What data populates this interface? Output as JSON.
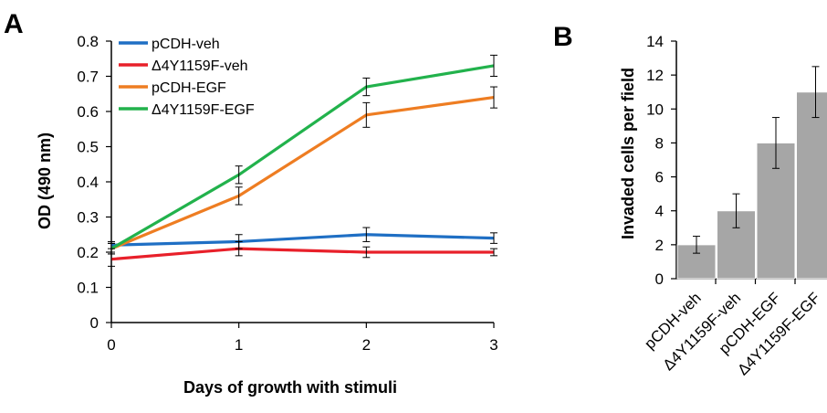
{
  "panels": {
    "a_letter": "A",
    "b_letter": "B"
  },
  "chart_data": [
    {
      "type": "line",
      "xlabel": "Days of growth with stimuli",
      "ylabel": "OD (490 nm)",
      "xlim": [
        0,
        3
      ],
      "ylim": [
        0,
        0.8
      ],
      "x_ticks": [
        "0",
        "1",
        "2",
        "3"
      ],
      "y_ticks": [
        "0",
        "0.1",
        "0.2",
        "0.3",
        "0.4",
        "0.5",
        "0.6",
        "0.7",
        "0.8"
      ],
      "x": [
        0,
        1,
        2,
        3
      ],
      "legend_position": "top-left",
      "grid": false,
      "series": [
        {
          "name": "pCDH-veh",
          "color": "#1f6fc4",
          "values": [
            0.22,
            0.23,
            0.25,
            0.24
          ],
          "errors": [
            0.01,
            0.02,
            0.02,
            0.015
          ]
        },
        {
          "name": "Δ4Y1159F-veh",
          "color": "#e8202a",
          "values": [
            0.18,
            0.21,
            0.2,
            0.2
          ],
          "errors": [
            0.02,
            0.02,
            0.015,
            0.01
          ]
        },
        {
          "name": "pCDH-EGF",
          "color": "#ee7d22",
          "values": [
            0.21,
            0.36,
            0.59,
            0.64
          ],
          "errors": [
            0.015,
            0.025,
            0.035,
            0.03
          ]
        },
        {
          "name": "Δ4Y1159F-EGF",
          "color": "#22b24c",
          "values": [
            0.21,
            0.42,
            0.67,
            0.73
          ],
          "errors": [
            0.015,
            0.025,
            0.025,
            0.03
          ]
        }
      ]
    },
    {
      "type": "bar",
      "ylabel": "Invaded cells per field",
      "ylim": [
        0,
        14
      ],
      "y_ticks": [
        "0",
        "2",
        "4",
        "6",
        "8",
        "10",
        "12",
        "14"
      ],
      "categories": [
        "pCDH-veh",
        "Δ4Y1159F-veh",
        "pCDH-EGF",
        "Δ4Y1159F-EGF"
      ],
      "values": [
        2,
        4,
        8,
        11
      ],
      "errors": [
        0.5,
        1,
        1.5,
        1.5
      ],
      "bar_color": "#a6a6a6",
      "grid": false
    }
  ]
}
